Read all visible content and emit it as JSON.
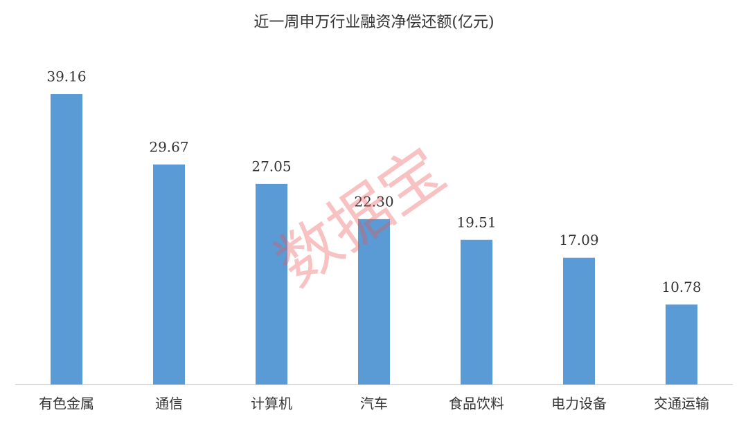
{
  "chart_data": {
    "type": "bar",
    "title": "近一周申万行业融资净偿还额(亿元)",
    "categories": [
      "有色金属",
      "通信",
      "计算机",
      "汽车",
      "食品饮料",
      "电力设备",
      "交通运输"
    ],
    "values": [
      39.16,
      29.67,
      27.05,
      22.3,
      19.51,
      17.09,
      10.78
    ],
    "value_labels": [
      "39.16",
      "29.67",
      "27.05",
      "22.30",
      "19.51",
      "17.09",
      "10.78"
    ],
    "color": "#5b9bd5",
    "ylim": [
      0,
      45
    ],
    "grid": false,
    "watermark": "数据宝"
  }
}
